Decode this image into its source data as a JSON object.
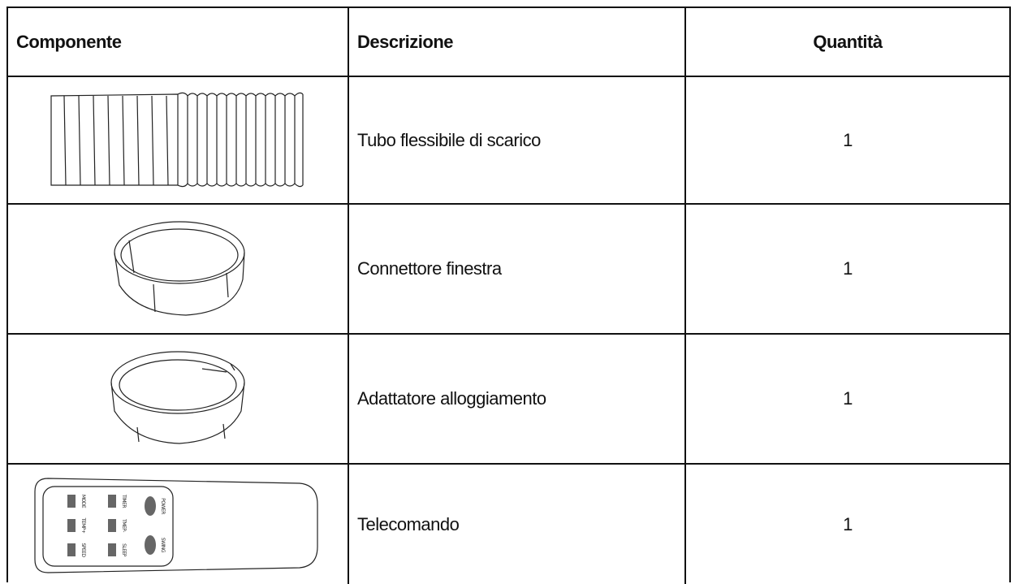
{
  "table": {
    "header": [
      "Componente",
      "Descrizione",
      "Quantità"
    ],
    "rows": [
      {
        "description": "Tubo flessibile di scarico",
        "quantity": "1"
      },
      {
        "description": "Connettore finestra",
        "quantity": "1"
      },
      {
        "description": "Adattatore alloggiamento",
        "quantity": "1"
      },
      {
        "description": "Telecomando",
        "quantity": "1",
        "remote_buttons": [
          "MODE",
          "TIMER",
          "POWER",
          "TEMP+",
          "TMEP-",
          "SPEED",
          "SLEEP",
          "SWING"
        ]
      }
    ]
  }
}
